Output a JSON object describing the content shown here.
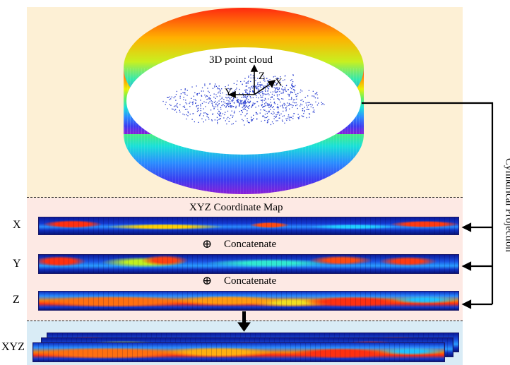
{
  "title_3d": "3D point cloud",
  "axes": {
    "x": "X",
    "y": "Y",
    "z": "Z"
  },
  "map_title": "XYZ Coordinate Map",
  "row_labels": {
    "x": "X",
    "y": "Y",
    "z": "Z",
    "xyz": "XYZ"
  },
  "concat_label": "Concatenate",
  "concat_symbol": "⊕",
  "side_label": "Cylindrical Projection",
  "colors": {
    "top_bg": "#fdf0d5",
    "mid_bg": "#fde9e4",
    "bottom_bg": "#d9ecf6",
    "point_cloud": "#2a3fd0",
    "map_base": "#0a1a9a"
  }
}
